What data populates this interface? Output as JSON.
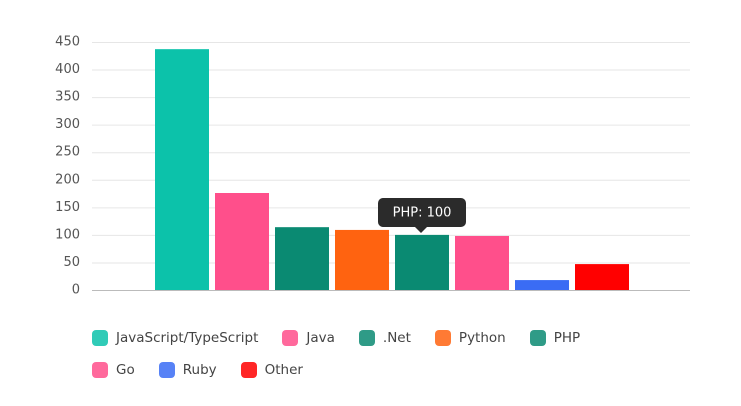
{
  "chart_data": {
    "type": "bar",
    "ylim": [
      0,
      450
    ],
    "yticks": [
      0,
      50,
      100,
      150,
      200,
      250,
      300,
      350,
      400,
      450
    ],
    "grid": true,
    "series": [
      {
        "name": "JavaScript/TypeScript",
        "color": "#0cc2aa",
        "values": [
          437
        ]
      },
      {
        "name": "Java",
        "color": "#ff4f8b",
        "values": [
          176
        ]
      },
      {
        "name": ".Net",
        "color": "#0a8a72",
        "values": [
          114
        ]
      },
      {
        "name": "Python",
        "color": "#ff6310",
        "values": [
          109
        ]
      },
      {
        "name": "PHP",
        "color": "#0a8a72",
        "values": [
          100
        ]
      },
      {
        "name": "Go",
        "color": "#ff4f8b",
        "values": [
          98
        ]
      },
      {
        "name": "Ruby",
        "color": "#3a6cf4",
        "values": [
          18
        ]
      },
      {
        "name": "Other",
        "color": "#ff0000",
        "values": [
          47
        ]
      }
    ],
    "tooltip": "PHP: 100"
  }
}
